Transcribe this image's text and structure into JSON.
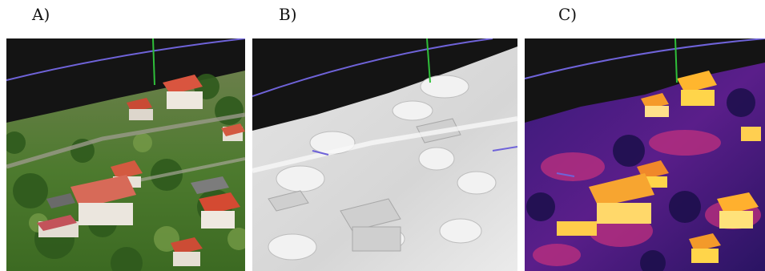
{
  "figure": {
    "panels": [
      {
        "label": "A)",
        "render": "textured-photogrammetry-mesh"
      },
      {
        "label": "B)",
        "render": "untextured-shaded-mesh"
      },
      {
        "label": "C)",
        "render": "thermal-texture-mesh"
      }
    ],
    "colors": {
      "sky": "#141414",
      "horizon_line": "#6f63d9",
      "vertical_axis": "#2fbf3a",
      "thermal_hot": "#ffd54a",
      "thermal_mid": "#d0307e",
      "thermal_cold": "#2a1463"
    }
  }
}
